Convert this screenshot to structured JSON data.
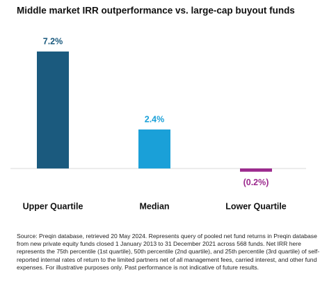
{
  "chart_data": {
    "type": "bar",
    "title": "Middle market IRR outperformance vs. large-cap buyout funds",
    "categories": [
      "Upper Quartile",
      "Median",
      "Lower Quartile"
    ],
    "values": [
      7.2,
      2.4,
      -0.2
    ],
    "value_labels": [
      "7.2%",
      "2.4%",
      "(0.2%)"
    ],
    "colors": [
      "#1b5a7e",
      "#1aa0d8",
      "#9c2a8e"
    ],
    "ylim": [
      -1,
      8
    ],
    "source": "Source: Preqin database, retrieved 20 May 2024. Represents query of pooled net fund returns in Preqin database from new private equity funds closed 1 January 2013 to 31 December 2021 across 568 funds. Net IRR here represents the 75th percentile (1st quartile), 50th percentile (2nd quartile), and 25th percentile (3rd quartile) of self-reported internal rates of return to the limited partners net of all management fees, carried interest, and other fund expenses. For illustrative purposes only. Past performance is not indicative of future results."
  }
}
